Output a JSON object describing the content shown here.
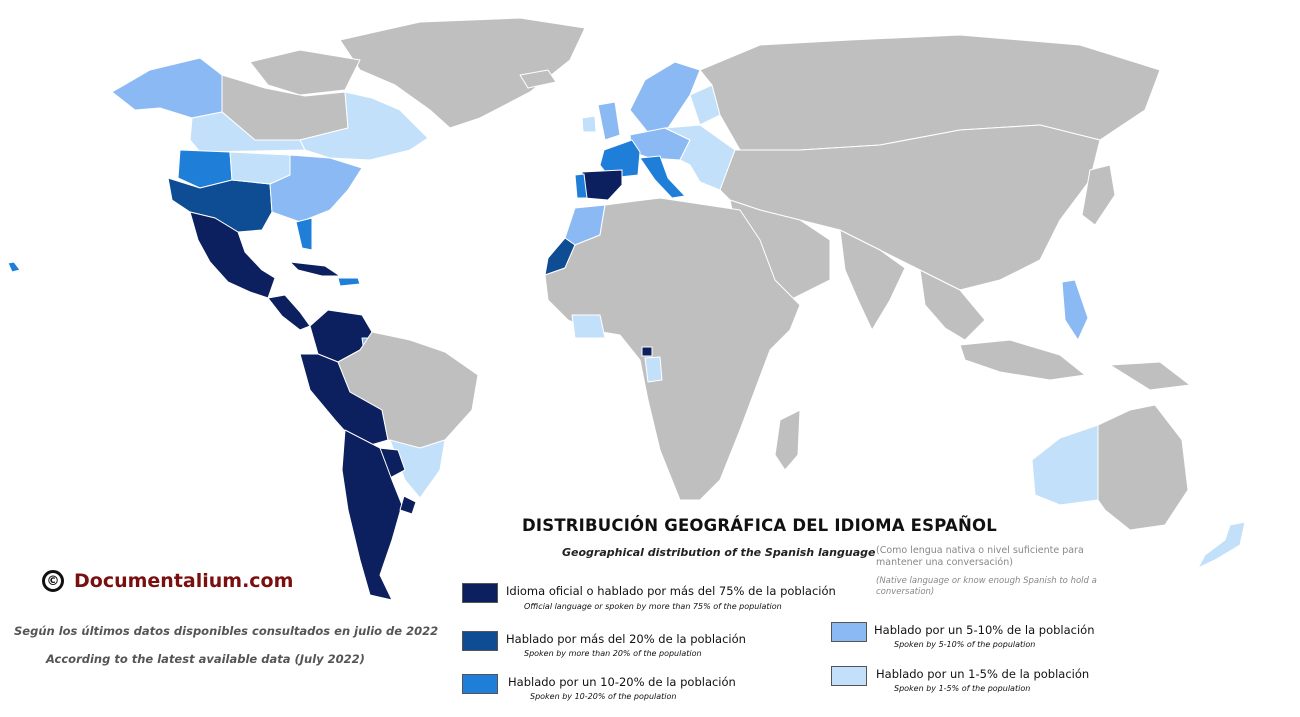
{
  "title": "DISTRIBUCIÓN GEOGRÁFICA DEL IDIOMA ESPAÑOL",
  "subtitle": "Geographical distribution of the Spanish language",
  "note_es": "(Como lengua nativa o nivel suficiente para mantener una conversación)",
  "note_en": "(Native language or know enough Spanish to hold a conversation)",
  "brand": {
    "symbol": "©",
    "name": "Documentalium.com"
  },
  "source_es": "Según los últimos datos disponibles consultados en julio de 2022",
  "source_en": "According to the latest available data (July 2022)",
  "colors": {
    "ocean": "#ffffff",
    "no_data": "#bfbfbf",
    "over_75": "#0c1f5e",
    "over_20": "#0e4c94",
    "p10_20": "#1f7fd8",
    "p5_10": "#8ab9f3",
    "p1_5": "#c3e0fa"
  },
  "legend": [
    {
      "key": "over_75",
      "label_es": "Idioma oficial o hablado por más del 75% de la población",
      "label_en": "Official language or spoken by more than 75% of the population"
    },
    {
      "key": "over_20",
      "label_es": "Hablado por más del 20% de la población",
      "label_en": "Spoken by more than 20% of the population"
    },
    {
      "key": "p10_20",
      "label_es": "Hablado por un 10-20% de la población",
      "label_en": "Spoken by 10-20% of the population"
    },
    {
      "key": "p5_10",
      "label_es": "Hablado por un 5-10% de la población",
      "label_en": "Spoken by 5-10% of the population"
    },
    {
      "key": "p1_5",
      "label_es": "Hablado por un 1-5% de la población",
      "label_en": "Spoken by 1-5% of the population"
    }
  ],
  "regions": [
    {
      "name": "greenland",
      "cat": "no_data"
    },
    {
      "name": "alaska",
      "cat": "p5_10"
    },
    {
      "name": "canada-west",
      "cat": "p1_5"
    },
    {
      "name": "canada-north",
      "cat": "no_data"
    },
    {
      "name": "canada-east",
      "cat": "p1_5"
    },
    {
      "name": "arctic-islands",
      "cat": "no_data"
    },
    {
      "name": "usa-northwest",
      "cat": "p10_20"
    },
    {
      "name": "usa-southwest",
      "cat": "over_20"
    },
    {
      "name": "usa-central",
      "cat": "p1_5"
    },
    {
      "name": "usa-east",
      "cat": "p5_10"
    },
    {
      "name": "florida",
      "cat": "p10_20"
    },
    {
      "name": "mexico",
      "cat": "over_75"
    },
    {
      "name": "central-america",
      "cat": "over_75"
    },
    {
      "name": "cuba",
      "cat": "over_75"
    },
    {
      "name": "caribbean",
      "cat": "p10_20"
    },
    {
      "name": "colombia-venezuela",
      "cat": "over_75"
    },
    {
      "name": "ecuador-peru-bolivia",
      "cat": "over_75"
    },
    {
      "name": "guyanas",
      "cat": "p5_10"
    },
    {
      "name": "brazil",
      "cat": "no_data"
    },
    {
      "name": "brazil-south",
      "cat": "p1_5"
    },
    {
      "name": "paraguay",
      "cat": "over_75"
    },
    {
      "name": "chile-argentina",
      "cat": "over_75"
    },
    {
      "name": "uruguay",
      "cat": "over_75"
    },
    {
      "name": "iceland",
      "cat": "no_data"
    },
    {
      "name": "scandinavia",
      "cat": "p5_10"
    },
    {
      "name": "finland",
      "cat": "p1_5"
    },
    {
      "name": "uk",
      "cat": "p5_10"
    },
    {
      "name": "ireland",
      "cat": "p1_5"
    },
    {
      "name": "central-europe",
      "cat": "p5_10"
    },
    {
      "name": "eastern-europe",
      "cat": "p1_5"
    },
    {
      "name": "france",
      "cat": "p10_20"
    },
    {
      "name": "italy",
      "cat": "p10_20"
    },
    {
      "name": "spain",
      "cat": "over_75"
    },
    {
      "name": "portugal",
      "cat": "p10_20"
    },
    {
      "name": "russia",
      "cat": "no_data"
    },
    {
      "name": "asia",
      "cat": "no_data"
    },
    {
      "name": "middle-east",
      "cat": "no_data"
    },
    {
      "name": "india",
      "cat": "no_data"
    },
    {
      "name": "southeast-asia",
      "cat": "no_data"
    },
    {
      "name": "japan",
      "cat": "no_data"
    },
    {
      "name": "philippines",
      "cat": "p5_10"
    },
    {
      "name": "indonesia",
      "cat": "no_data"
    },
    {
      "name": "new-guinea",
      "cat": "no_data"
    },
    {
      "name": "morocco",
      "cat": "p5_10"
    },
    {
      "name": "western-sahara",
      "cat": "over_20"
    },
    {
      "name": "africa",
      "cat": "no_data"
    },
    {
      "name": "equatorial-guinea",
      "cat": "over_75"
    },
    {
      "name": "gabon",
      "cat": "p1_5"
    },
    {
      "name": "west-africa-coast",
      "cat": "p1_5"
    },
    {
      "name": "madagascar",
      "cat": "no_data"
    },
    {
      "name": "australia-west",
      "cat": "p1_5"
    },
    {
      "name": "australia-east",
      "cat": "no_data"
    },
    {
      "name": "new-zealand",
      "cat": "p1_5"
    },
    {
      "name": "hawaii",
      "cat": "p10_20"
    }
  ]
}
